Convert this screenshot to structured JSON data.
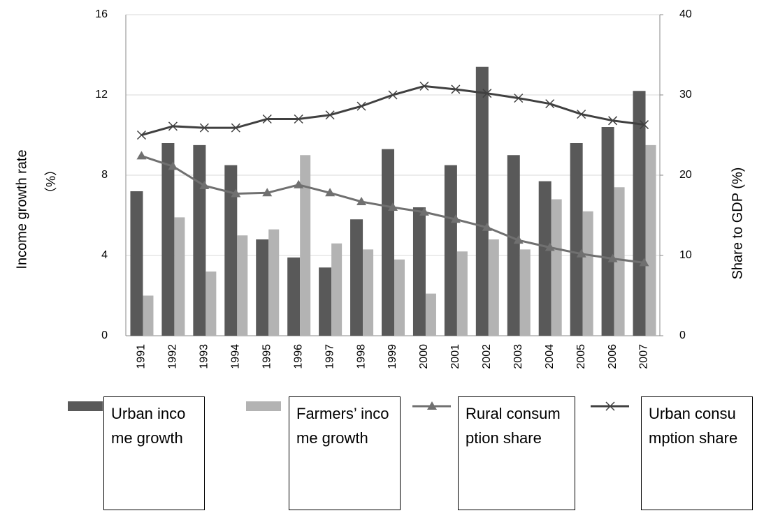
{
  "chart_data": {
    "type": "bar-line",
    "categories": [
      "1991",
      "1992",
      "1993",
      "1994",
      "1995",
      "1996",
      "1997",
      "1998",
      "1999",
      "2000",
      "2001",
      "2002",
      "2003",
      "2004",
      "2005",
      "2006",
      "2007"
    ],
    "ylabel": [
      "Income growth rate",
      "（%）"
    ],
    "y2label": "Share to GDP (%)",
    "ylim": [
      0,
      16
    ],
    "yticks": [
      0,
      4,
      8,
      12,
      16
    ],
    "y2lim": [
      0,
      40
    ],
    "y2ticks": [
      0,
      10,
      20,
      30,
      40
    ],
    "grid": true,
    "series": [
      {
        "name": "Urban income growth",
        "type": "bar",
        "color": "#595959",
        "values": [
          7.2,
          9.6,
          9.5,
          8.5,
          4.8,
          3.9,
          3.4,
          5.8,
          9.3,
          6.4,
          8.5,
          13.4,
          9.0,
          7.7,
          9.6,
          10.4,
          12.2
        ]
      },
      {
        "name": "Farmers’ income growth",
        "type": "bar",
        "color": "#b3b3b3",
        "values": [
          2.0,
          5.9,
          3.2,
          5.0,
          5.3,
          9.0,
          4.6,
          4.3,
          3.8,
          2.1,
          4.2,
          4.8,
          4.3,
          6.8,
          6.2,
          7.4,
          9.5
        ]
      },
      {
        "name": "Rural consumption share",
        "type": "line",
        "axis": "y2",
        "marker": "triangle",
        "color": "#707070",
        "values": [
          22.4,
          21.1,
          18.7,
          17.7,
          17.8,
          18.8,
          17.8,
          16.7,
          16.0,
          15.4,
          14.5,
          13.5,
          11.9,
          11.0,
          10.2,
          9.6,
          9.1
        ]
      },
      {
        "name": "Urban consumption share",
        "type": "line",
        "axis": "y2",
        "marker": "x",
        "color": "#404040",
        "values": [
          25.0,
          26.1,
          25.9,
          25.9,
          27.0,
          27.0,
          27.5,
          28.6,
          30.0,
          31.1,
          30.7,
          30.2,
          29.6,
          28.9,
          27.6,
          26.8,
          26.3
        ]
      }
    ]
  }
}
